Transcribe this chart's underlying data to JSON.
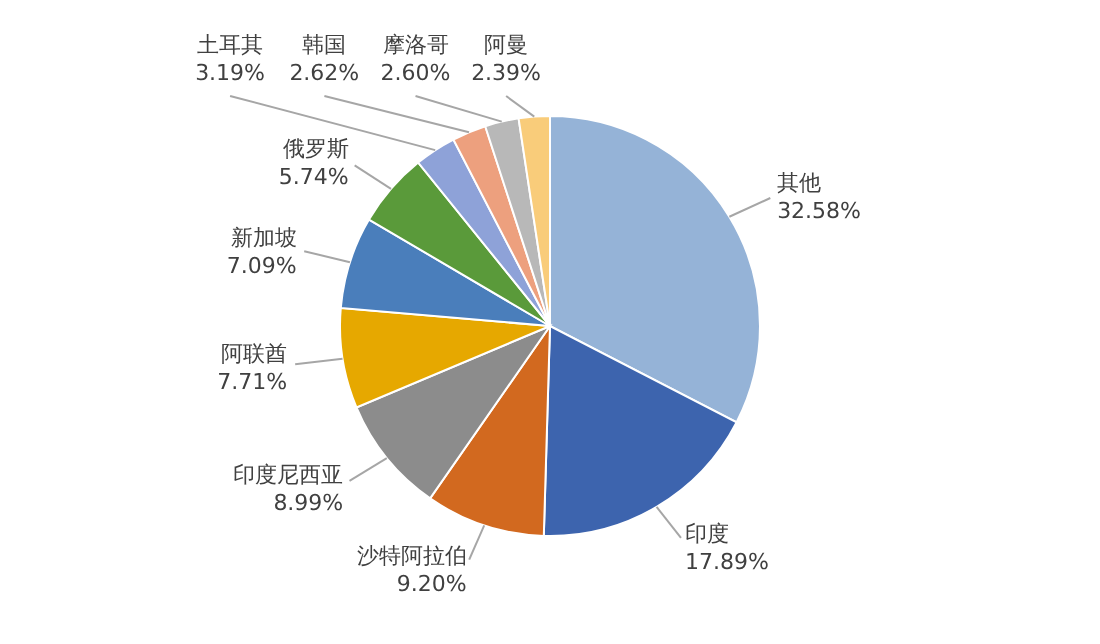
{
  "chart_data": {
    "type": "pie",
    "categories": [
      "其他",
      "印度",
      "沙特阿拉伯",
      "印度尼西亚",
      "阿联酋",
      "新加坡",
      "俄罗斯",
      "土耳其",
      "韩国",
      "摩洛哥",
      "阿曼"
    ],
    "values": [
      32.58,
      17.89,
      9.2,
      8.99,
      7.71,
      7.09,
      5.74,
      3.19,
      2.62,
      2.6,
      2.39
    ],
    "value_labels": [
      "32.58%",
      "17.89%",
      "9.20%",
      "8.99%",
      "7.71%",
      "7.09%",
      "5.74%",
      "3.19%",
      "2.62%",
      "2.60%",
      "2.39%"
    ],
    "colors": [
      "#95b3d7",
      "#3d64ae",
      "#d2691f",
      "#8c8c8c",
      "#e6a800",
      "#4a7ebb",
      "#5a9a3a",
      "#8ea2d8",
      "#eda07e",
      "#b8b8b8",
      "#f9cc7a"
    ],
    "legend": false
  }
}
